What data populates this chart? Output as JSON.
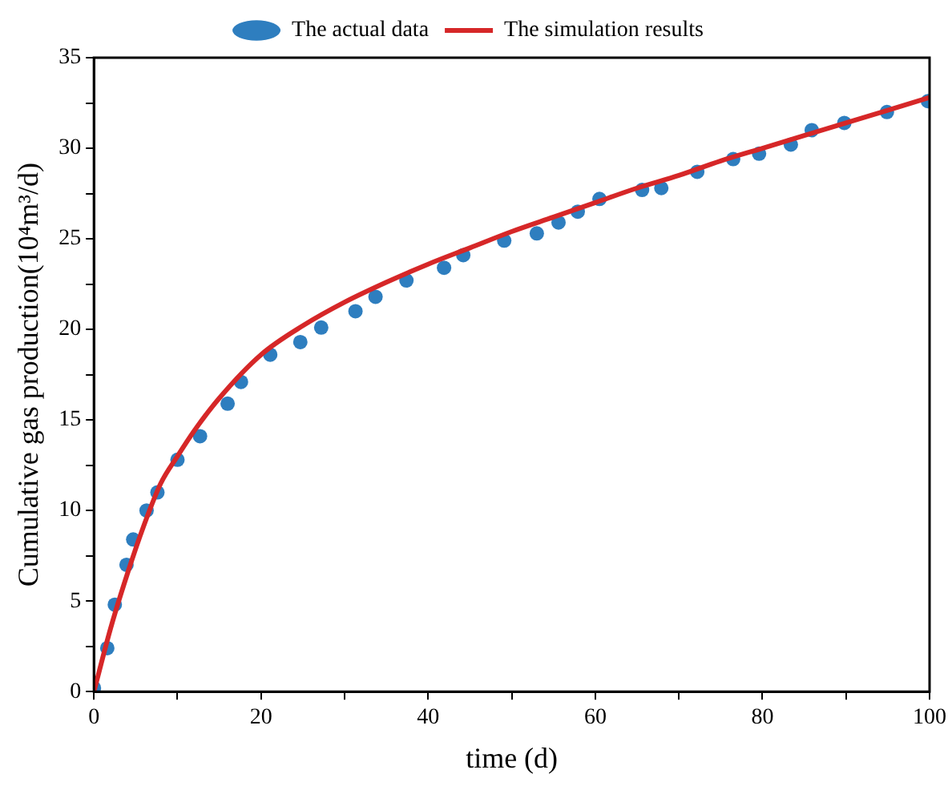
{
  "chart_data": {
    "type": "scatter",
    "xlabel": "time (d)",
    "ylabel": "Cumulative gas production(10⁴m³/d)",
    "xlim": [
      0,
      100
    ],
    "xticks": [
      0,
      {
        "value": 10,
        "label": null
      },
      20,
      {
        "value": 30,
        "label": null
      },
      40,
      {
        "value": 50,
        "label": null
      },
      60,
      {
        "value": 70,
        "label": null
      },
      80,
      {
        "value": 90,
        "label": null
      },
      100
    ],
    "ylim": [
      0,
      35
    ],
    "yticks": [
      0,
      {
        "value": 2.5,
        "label": null
      },
      5,
      {
        "value": 7.5,
        "label": null
      },
      10,
      {
        "value": 12.5,
        "label": null
      },
      15,
      {
        "value": 17.5,
        "label": null
      },
      20,
      {
        "value": 22.5,
        "label": null
      },
      25,
      {
        "value": 27.5,
        "label": null
      },
      30,
      {
        "value": 32.5,
        "label": null
      },
      35
    ],
    "grid": false,
    "legend": "top",
    "series": [
      {
        "name": "The actual data",
        "color": "#2e7ebf",
        "marker": "circle",
        "x": [
          0,
          1.6,
          2.5,
          3.9,
          4.7,
          6.3,
          7.6,
          10,
          12.7,
          16,
          17.6,
          21.1,
          24.7,
          27.2,
          31.3,
          33.7,
          37.4,
          41.9,
          44.2,
          49.1,
          53,
          55.6,
          57.9,
          60.5,
          65.6,
          67.9,
          72.2,
          76.5,
          79.6,
          83.4,
          85.9,
          89.8,
          94.9,
          99.8
        ],
        "values": [
          0.2,
          2.4,
          4.8,
          7.0,
          8.4,
          10.0,
          11.0,
          12.8,
          14.1,
          15.9,
          17.1,
          18.6,
          19.3,
          20.1,
          21.0,
          21.8,
          22.7,
          23.4,
          24.1,
          24.9,
          25.3,
          25.9,
          26.5,
          27.2,
          27.7,
          27.8,
          28.7,
          29.4,
          29.7,
          30.2,
          31.0,
          31.4,
          32.0,
          32.6
        ]
      },
      {
        "name": "The simulation results",
        "type": "line",
        "color": "#d62728",
        "marker": "none",
        "line_style": "solid",
        "x": [
          0,
          2,
          4,
          6,
          8,
          10,
          12,
          15,
          20,
          25,
          30,
          35,
          40,
          45,
          50,
          55,
          60,
          65,
          70,
          75,
          80,
          85,
          90,
          95,
          100
        ],
        "values": [
          0,
          3.5,
          6.5,
          9.2,
          11.5,
          13.0,
          14.4,
          16.2,
          18.6,
          20.2,
          21.5,
          22.6,
          23.6,
          24.5,
          25.4,
          26.2,
          27.0,
          27.8,
          28.5,
          29.3,
          30.0,
          30.7,
          31.4,
          32.1,
          32.8
        ]
      }
    ]
  }
}
